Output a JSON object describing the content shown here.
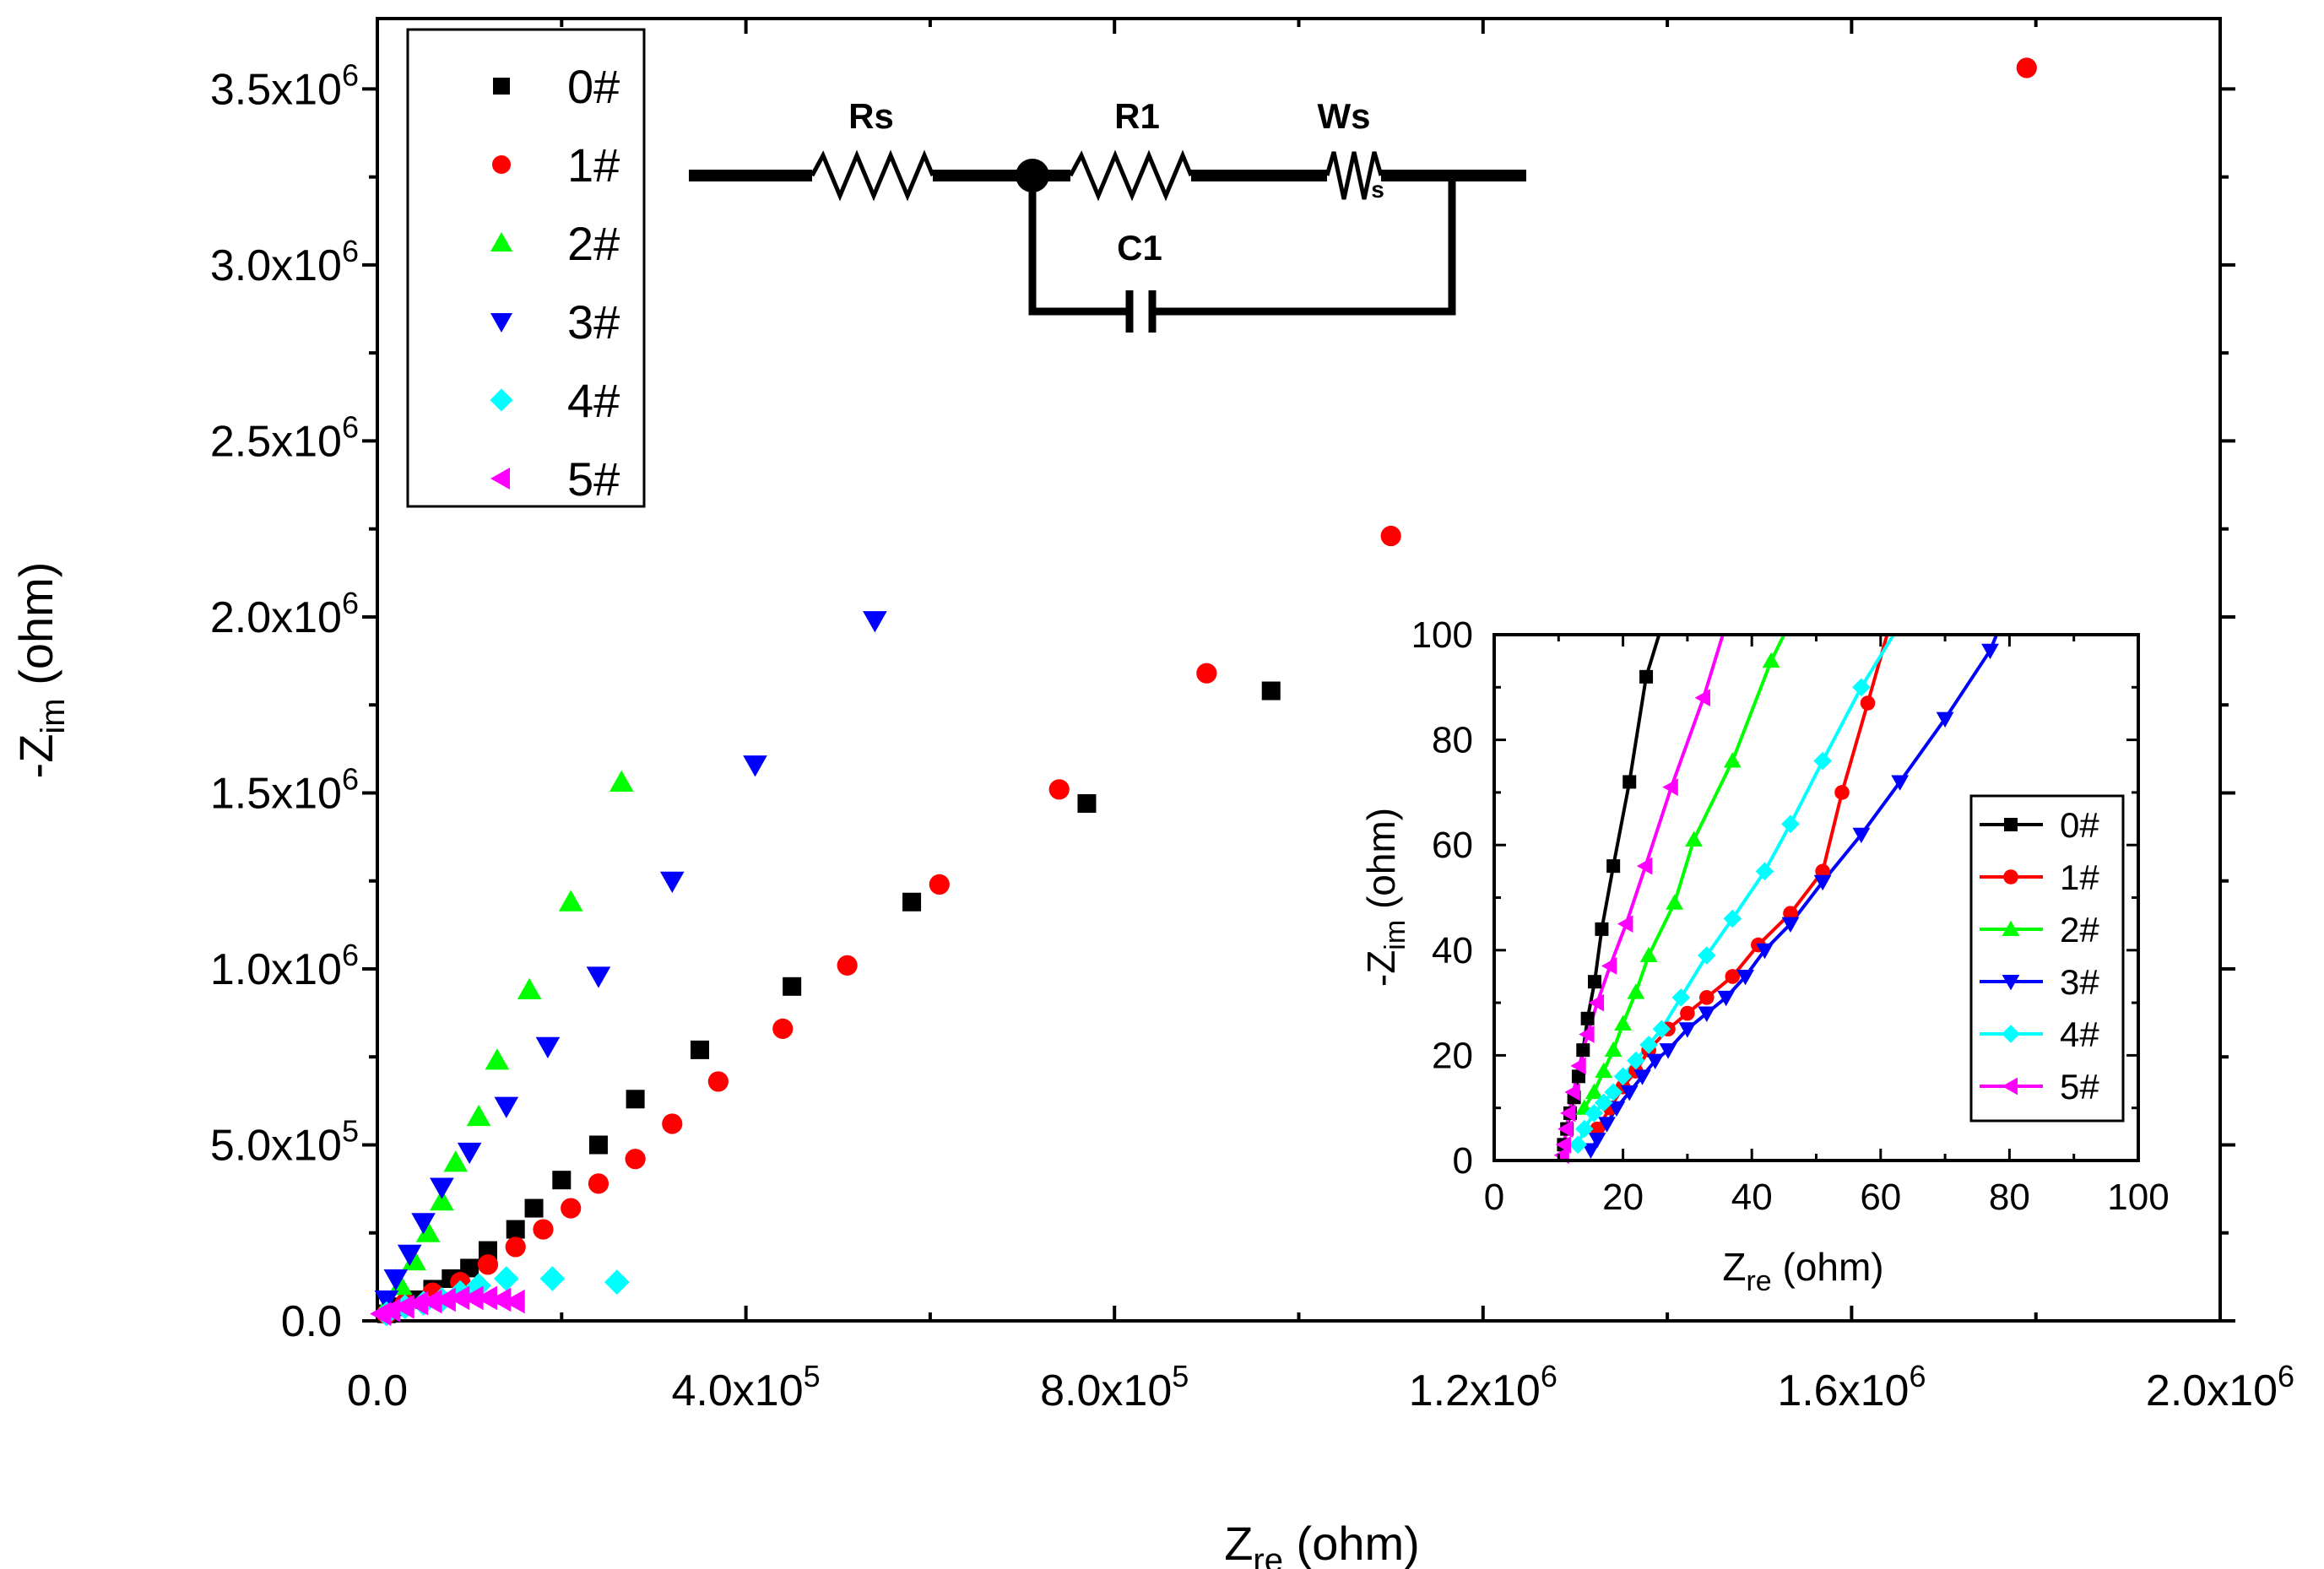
{
  "chart_data": [
    {
      "type": "scatter",
      "title": "",
      "xlabel": {
        "main": "Z",
        "sub": "re",
        "unit": " (ohm)"
      },
      "ylabel": {
        "main": "-Z",
        "sub": "im",
        "unit": " (ohm)"
      },
      "xlim": [
        0,
        2000000
      ],
      "ylim": [
        0,
        3700000
      ],
      "xticks": [
        {
          "value": 0,
          "label": "0.0",
          "exp": ""
        },
        {
          "value": 400000,
          "label": "4.0x10",
          "exp": "5"
        },
        {
          "value": 800000,
          "label": "8.0x10",
          "exp": "5"
        },
        {
          "value": 1200000,
          "label": "1.2x10",
          "exp": "6"
        },
        {
          "value": 1600000,
          "label": "1.6x10",
          "exp": "6"
        },
        {
          "value": 2000000,
          "label": "2.0x10",
          "exp": "6"
        }
      ],
      "yticks": [
        {
          "value": 0,
          "label": "0.0",
          "exp": ""
        },
        {
          "value": 500000,
          "label": "5.0x10",
          "exp": "5"
        },
        {
          "value": 1000000,
          "label": "1.0x10",
          "exp": "6"
        },
        {
          "value": 1500000,
          "label": "1.5x10",
          "exp": "6"
        },
        {
          "value": 2000000,
          "label": "2.0x10",
          "exp": "6"
        },
        {
          "value": 2500000,
          "label": "2.5x10",
          "exp": "6"
        },
        {
          "value": 3000000,
          "label": "3.0x10",
          "exp": "6"
        },
        {
          "value": 3500000,
          "label": "3.5x10",
          "exp": "6"
        }
      ],
      "legend": "top-left",
      "series": [
        {
          "name": "0#",
          "color": "#000000",
          "marker": "square",
          "points": [
            [
              10000,
              20000
            ],
            [
              20000,
              40000
            ],
            [
              40000,
              60000
            ],
            [
              60000,
              90000
            ],
            [
              80000,
              120000
            ],
            [
              100000,
              150000
            ],
            [
              120000,
              200000
            ],
            [
              150000,
              260000
            ],
            [
              170000,
              320000
            ],
            [
              200000,
              400000
            ],
            [
              240000,
              500000
            ],
            [
              280000,
              630000
            ],
            [
              350000,
              770000
            ],
            [
              450000,
              950000
            ],
            [
              580000,
              1190000
            ],
            [
              770000,
              1470000
            ],
            [
              970000,
              1790000
            ]
          ]
        },
        {
          "name": "1#",
          "color": "#ff0000",
          "marker": "circle",
          "points": [
            [
              10000,
              20000
            ],
            [
              30000,
              50000
            ],
            [
              60000,
              80000
            ],
            [
              90000,
              110000
            ],
            [
              120000,
              160000
            ],
            [
              150000,
              210000
            ],
            [
              180000,
              260000
            ],
            [
              210000,
              320000
            ],
            [
              240000,
              390000
            ],
            [
              280000,
              460000
            ],
            [
              320000,
              560000
            ],
            [
              370000,
              680000
            ],
            [
              440000,
              830000
            ],
            [
              510000,
              1010000
            ],
            [
              610000,
              1240000
            ],
            [
              740000,
              1510000
            ],
            [
              900000,
              1840000
            ],
            [
              1100000,
              2230000
            ],
            [
              1790000,
              3560000
            ]
          ]
        },
        {
          "name": "2#",
          "color": "#00ff00",
          "marker": "triangle-up",
          "points": [
            [
              10000,
              40000
            ],
            [
              25000,
              100000
            ],
            [
              40000,
              170000
            ],
            [
              55000,
              250000
            ],
            [
              70000,
              340000
            ],
            [
              85000,
              450000
            ],
            [
              110000,
              580000
            ],
            [
              130000,
              740000
            ],
            [
              165000,
              940000
            ],
            [
              210000,
              1190000
            ],
            [
              265000,
              1530000
            ]
          ]
        },
        {
          "name": "3#",
          "color": "#0000ff",
          "marker": "triangle-down",
          "points": [
            [
              10000,
              60000
            ],
            [
              20000,
              120000
            ],
            [
              35000,
              190000
            ],
            [
              50000,
              280000
            ],
            [
              70000,
              380000
            ],
            [
              100000,
              480000
            ],
            [
              140000,
              610000
            ],
            [
              185000,
              780000
            ],
            [
              240000,
              980000
            ],
            [
              320000,
              1250000
            ],
            [
              410000,
              1580000
            ],
            [
              540000,
              1990000
            ]
          ]
        },
        {
          "name": "4#",
          "color": "#00ffff",
          "marker": "diamond",
          "points": [
            [
              10000,
              20000
            ],
            [
              30000,
              40000
            ],
            [
              50000,
              50000
            ],
            [
              70000,
              60000
            ],
            [
              90000,
              80000
            ],
            [
              110000,
              100000
            ],
            [
              140000,
              120000
            ],
            [
              190000,
              120000
            ],
            [
              260000,
              110000
            ]
          ]
        },
        {
          "name": "5#",
          "color": "#ff00ff",
          "marker": "triangle-left",
          "points": [
            [
              5000,
              20000
            ],
            [
              15000,
              30000
            ],
            [
              30000,
              40000
            ],
            [
              45000,
              50000
            ],
            [
              60000,
              55000
            ],
            [
              75000,
              60000
            ],
            [
              90000,
              65000
            ],
            [
              105000,
              65000
            ],
            [
              120000,
              65000
            ],
            [
              135000,
              60000
            ],
            [
              150000,
              55000
            ]
          ]
        }
      ]
    },
    {
      "type": "line",
      "title": "",
      "xlabel": {
        "main": "Z",
        "sub": "re",
        "unit": " (ohm)"
      },
      "ylabel": {
        "main": "-Z",
        "sub": "im",
        "unit": " (ohm)"
      },
      "xlim": [
        0,
        100
      ],
      "ylim": [
        0,
        100
      ],
      "xticks": [
        0,
        20,
        40,
        60,
        80,
        100
      ],
      "yticks": [
        0,
        20,
        40,
        60,
        80,
        100
      ],
      "legend": "bottom-right",
      "series": [
        {
          "name": "0#",
          "color": "#000000",
          "marker": "square",
          "points": [
            [
              10.8,
              3
            ],
            [
              11.3,
              6
            ],
            [
              11.8,
              9
            ],
            [
              12.4,
              12
            ],
            [
              13.1,
              16
            ],
            [
              13.8,
              21
            ],
            [
              14.5,
              27
            ],
            [
              15.6,
              34
            ],
            [
              16.7,
              44
            ],
            [
              18.5,
              56
            ],
            [
              21.0,
              72
            ],
            [
              23.6,
              92
            ],
            [
              25.6,
              100
            ]
          ]
        },
        {
          "name": "1#",
          "color": "#ff0000",
          "marker": "circle",
          "points": [
            [
              16,
              6
            ],
            [
              18,
              10
            ],
            [
              20,
              14
            ],
            [
              22,
              17
            ],
            [
              24,
              21
            ],
            [
              27,
              25
            ],
            [
              30,
              28
            ],
            [
              33,
              31
            ],
            [
              37,
              35
            ],
            [
              41,
              41
            ],
            [
              46,
              47
            ],
            [
              51,
              55
            ],
            [
              54,
              70
            ],
            [
              58,
              87
            ],
            [
              61,
              100
            ]
          ]
        },
        {
          "name": "2#",
          "color": "#00ff00",
          "marker": "triangle-up",
          "points": [
            [
              14,
              10
            ],
            [
              15.5,
              13
            ],
            [
              17.0,
              17
            ],
            [
              18.5,
              21
            ],
            [
              20,
              26
            ],
            [
              22,
              32
            ],
            [
              24,
              39
            ],
            [
              28,
              49
            ],
            [
              31,
              61
            ],
            [
              37,
              76
            ],
            [
              43,
              95
            ],
            [
              45,
              100
            ]
          ]
        },
        {
          "name": "3#",
          "color": "#0000ff",
          "marker": "triangle-down",
          "points": [
            [
              15,
              2
            ],
            [
              16,
              4
            ],
            [
              17.5,
              7
            ],
            [
              19,
              10
            ],
            [
              21,
              13
            ],
            [
              23,
              16
            ],
            [
              25,
              19
            ],
            [
              27,
              21
            ],
            [
              30,
              25
            ],
            [
              33,
              28
            ],
            [
              36,
              31
            ],
            [
              39,
              35
            ],
            [
              42,
              40
            ],
            [
              46,
              45
            ],
            [
              51,
              53
            ],
            [
              57,
              62
            ],
            [
              63,
              72
            ],
            [
              70,
              84
            ],
            [
              77,
              97
            ],
            [
              78,
              100
            ]
          ]
        },
        {
          "name": "4#",
          "color": "#00ffff",
          "marker": "diamond",
          "points": [
            [
              13,
              3
            ],
            [
              14,
              6
            ],
            [
              15.5,
              9
            ],
            [
              17,
              11
            ],
            [
              18.5,
              13
            ],
            [
              20,
              16
            ],
            [
              22,
              19
            ],
            [
              24,
              22
            ],
            [
              26,
              25
            ],
            [
              29,
              31
            ],
            [
              33,
              39
            ],
            [
              37,
              46
            ],
            [
              42,
              55
            ],
            [
              46,
              64
            ],
            [
              51,
              76
            ],
            [
              57,
              90
            ],
            [
              62,
              100
            ]
          ]
        },
        {
          "name": "5#",
          "color": "#ff00ff",
          "marker": "triangle-left",
          "points": [
            [
              10.6,
              1
            ],
            [
              10.9,
              3
            ],
            [
              11.2,
              6
            ],
            [
              11.6,
              9
            ],
            [
              12.3,
              13
            ],
            [
              13.2,
              18
            ],
            [
              14.5,
              24
            ],
            [
              16,
              30
            ],
            [
              18,
              37
            ],
            [
              20.5,
              45
            ],
            [
              23.5,
              56
            ],
            [
              27.5,
              71
            ],
            [
              32.5,
              88
            ],
            [
              35.5,
              100
            ]
          ]
        }
      ]
    }
  ],
  "circuit": {
    "labels": {
      "rs": "Rs",
      "r1": "R1",
      "ws": "Ws",
      "ws_sub": "s",
      "c1": "C1"
    }
  }
}
